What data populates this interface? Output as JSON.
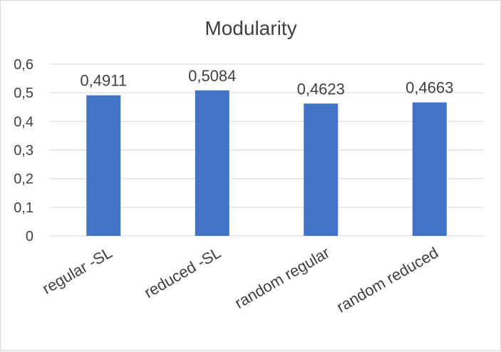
{
  "chart_data": {
    "type": "bar",
    "title": "Modularity",
    "categories": [
      "regular -SL",
      "reduced -SL",
      "random regular",
      "random reduced"
    ],
    "values": [
      0.4911,
      0.5084,
      0.4623,
      0.4663
    ],
    "data_labels": [
      "0,4911",
      "0,5084",
      "0,4623",
      "0,4663"
    ],
    "y_ticks": [
      {
        "value": 0,
        "label": "0"
      },
      {
        "value": 0.1,
        "label": "0,1"
      },
      {
        "value": 0.2,
        "label": "0,2"
      },
      {
        "value": 0.3,
        "label": "0,3"
      },
      {
        "value": 0.4,
        "label": "0,4"
      },
      {
        "value": 0.5,
        "label": "0,5"
      },
      {
        "value": 0.6,
        "label": "0,6"
      }
    ],
    "ylim": [
      0,
      0.6
    ],
    "grid": true,
    "legend": "none",
    "bar_color": "#4472C4",
    "grid_color": "#d9d9d9"
  }
}
